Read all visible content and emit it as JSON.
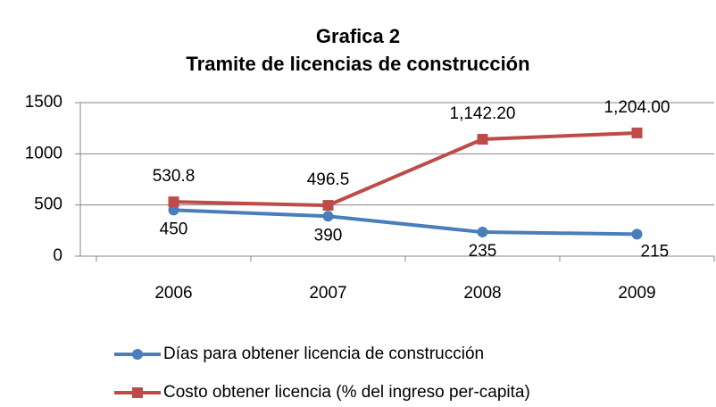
{
  "chart_data": {
    "type": "line",
    "title": "Grafica 2",
    "subtitle": "Tramite de licencias de construcción",
    "categories": [
      "2006",
      "2007",
      "2008",
      "2009"
    ],
    "series": [
      {
        "name": "Días para obtener licencia de construcción",
        "color": "#4a7ebb",
        "marker": "circle",
        "values": [
          450,
          390,
          235,
          215
        ]
      },
      {
        "name": "Costo obtener licencia (% del ingreso per-capita)",
        "color": "#be4b48",
        "marker": "square",
        "values": [
          530.8,
          496.5,
          1142.2,
          1204
        ],
        "value_labels": [
          "530.8",
          "496.5",
          "1,142.20",
          "1,204.00"
        ]
      }
    ],
    "ylim": [
      0,
      1500
    ],
    "yticks": [
      0,
      500,
      1000,
      1500
    ],
    "grid": true,
    "legend": "bottom"
  }
}
